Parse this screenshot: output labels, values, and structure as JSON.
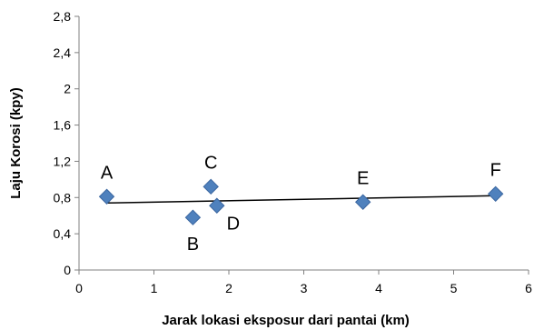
{
  "chart_data": {
    "type": "scatter",
    "title": "",
    "xlabel": "Jarak lokasi eksposur dari pantai (km)",
    "ylabel": "Laju Korosi (kpy)",
    "xlim": [
      0,
      6
    ],
    "ylim": [
      0,
      2.8
    ],
    "x_ticks": [
      "0",
      "1",
      "2",
      "3",
      "4",
      "5",
      "6"
    ],
    "y_ticks": [
      "0",
      "0,4",
      "0,8",
      "1,2",
      "1,6",
      "2",
      "2,4",
      "2,8"
    ],
    "grid": false,
    "legend": "none",
    "marker_color": "#4f81bd",
    "marker_stroke": "#3a66a0",
    "points": [
      {
        "label": "A",
        "x": 0.37,
        "y": 0.81,
        "label_pos": "above"
      },
      {
        "label": "B",
        "x": 1.52,
        "y": 0.58,
        "label_pos": "below"
      },
      {
        "label": "C",
        "x": 1.76,
        "y": 0.92,
        "label_pos": "above"
      },
      {
        "label": "D",
        "x": 1.84,
        "y": 0.71,
        "label_pos": "below-right"
      },
      {
        "label": "E",
        "x": 3.79,
        "y": 0.75,
        "label_pos": "above"
      },
      {
        "label": "F",
        "x": 5.56,
        "y": 0.84,
        "label_pos": "above"
      }
    ],
    "trendline": {
      "type": "linear",
      "x": [
        0.37,
        5.56
      ],
      "y": [
        0.74,
        0.82
      ],
      "color": "#000000"
    }
  }
}
